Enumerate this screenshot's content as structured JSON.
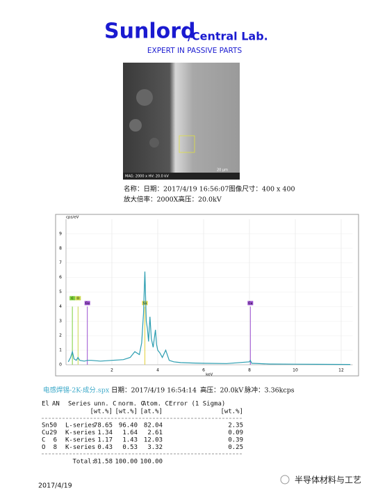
{
  "header": {
    "brand": "Sunlord",
    "division": "/Central Lab.",
    "tagline": "EXPERT IN PASSIVE PARTS"
  },
  "image": {
    "overlay": "MAG: 2000 x HV: 20.0 kV",
    "scale": "20 μm"
  },
  "caption": [
    "名称：日期：2017/4/19 16:56:07图像尺寸：400 x 400",
    "放大倍率：2000X高压：20.0kV"
  ],
  "spectrum": {
    "type": "line",
    "y_label": "cps/eV",
    "x_label": "keV",
    "color": "#2a9db0",
    "grid": true,
    "x": [
      0.1,
      0.2,
      0.28,
      0.35,
      0.45,
      0.52,
      0.6,
      0.8,
      0.93,
      1.1,
      1.5,
      2.0,
      2.5,
      2.8,
      3.0,
      3.2,
      3.3,
      3.38,
      3.44,
      3.5,
      3.55,
      3.6,
      3.66,
      3.72,
      3.8,
      3.9,
      3.95,
      4.0,
      4.1,
      4.2,
      4.35,
      4.5,
      4.7,
      5.0,
      5.5,
      6.0,
      7.0,
      8.0,
      8.04,
      8.1,
      8.9,
      9.0,
      10,
      11,
      12.4
    ],
    "values": [
      0.2,
      0.5,
      0.9,
      0.4,
      0.3,
      0.5,
      0.3,
      0.25,
      0.3,
      0.3,
      0.25,
      0.3,
      0.35,
      0.5,
      0.9,
      0.7,
      1.5,
      3.5,
      6.4,
      3.0,
      2.5,
      1.6,
      3.3,
      1.8,
      1.2,
      2.4,
      1.4,
      1.0,
      0.8,
      0.5,
      1.0,
      0.3,
      0.2,
      0.15,
      0.12,
      0.1,
      0.08,
      0.2,
      0.3,
      0.1,
      0.05,
      0.05,
      0.04,
      0.03,
      0.02
    ],
    "xlim": [
      0,
      12.5
    ],
    "ylim": [
      0,
      10
    ],
    "xticks": [
      2,
      4,
      6,
      8,
      10,
      12
    ],
    "yticks": [
      0,
      1,
      2,
      3,
      4,
      5,
      6,
      7,
      8,
      9
    ],
    "markers": [
      {
        "label": "C",
        "energy": 0.277,
        "color": "#7ccf3a"
      },
      {
        "label": "O",
        "energy": 0.525,
        "color": "#c8d84a"
      },
      {
        "label": "Sn",
        "energy": 3.44,
        "color": "#e3d23a"
      },
      {
        "label": "Cu",
        "energy": 0.93,
        "color": "#9b4fd0"
      },
      {
        "label": "Cu",
        "energy": 8.04,
        "color": "#9b4fd0"
      }
    ]
  },
  "info": {
    "file": "电感焊锡-2K-成分.spx",
    "date": "日期：2017/4/19 16:54:14",
    "voltage": "高压：20.0kV",
    "pulse": "脉冲：3.36kcps"
  },
  "table": {
    "columns": [
      "El",
      "AN",
      "Series",
      "unn. C",
      "norm. C",
      "Atom. C",
      "Error (1 Sigma)"
    ],
    "units": [
      "[wt.%]",
      "[wt.%]",
      "[at.%]",
      "[wt.%]"
    ],
    "rows": [
      [
        "Sn",
        "50",
        "L-series",
        "78.65",
        "96.40",
        "82.04",
        "2.35"
      ],
      [
        "Cu",
        "29",
        "K-series",
        "1.34",
        "1.64",
        "2.61",
        "0.09"
      ],
      [
        "C",
        "6",
        "K-series",
        "1.17",
        "1.43",
        "12.03",
        "0.39"
      ],
      [
        "O",
        "8",
        "K-series",
        "0.43",
        "0.53",
        "3.32",
        "0.25"
      ]
    ],
    "total": {
      "label": "Total:",
      "values": [
        "81.58",
        "100.00",
        "100.00"
      ]
    }
  },
  "footer": {
    "date": "2017/4/19",
    "watermark": "半导体材料与工艺"
  }
}
